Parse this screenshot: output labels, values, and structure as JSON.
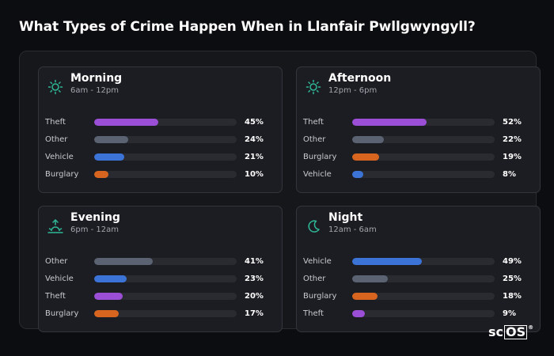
{
  "title": "What Types of Crime Happen When in Llanfair Pwllgwyngyll?",
  "logo": {
    "prefix": "sc",
    "boxed": "OS",
    "mark": "®"
  },
  "colors": {
    "Theft": "#9b4fd6",
    "Other": "#5b6272",
    "Vehicle": "#3b74d6",
    "Burglary": "#d7651f",
    "icon": "#2fb897"
  },
  "chart_data": [
    {
      "type": "bar",
      "title": "Morning",
      "subtitle": "6am - 12pm",
      "icon": "sun-icon",
      "categories": [
        "Theft",
        "Other",
        "Vehicle",
        "Burglary"
      ],
      "values": [
        45,
        24,
        21,
        10
      ],
      "labels": [
        "45%",
        "24%",
        "21%",
        "10%"
      ]
    },
    {
      "type": "bar",
      "title": "Afternoon",
      "subtitle": "12pm - 6pm",
      "icon": "sun-icon",
      "categories": [
        "Theft",
        "Other",
        "Burglary",
        "Vehicle"
      ],
      "values": [
        52,
        22,
        19,
        8
      ],
      "labels": [
        "52%",
        "22%",
        "19%",
        "8%"
      ]
    },
    {
      "type": "bar",
      "title": "Evening",
      "subtitle": "6pm - 12am",
      "icon": "sunset-icon",
      "categories": [
        "Other",
        "Vehicle",
        "Theft",
        "Burglary"
      ],
      "values": [
        41,
        23,
        20,
        17
      ],
      "labels": [
        "41%",
        "23%",
        "20%",
        "17%"
      ]
    },
    {
      "type": "bar",
      "title": "Night",
      "subtitle": "12am - 6am",
      "icon": "moon-icon",
      "categories": [
        "Vehicle",
        "Other",
        "Burglary",
        "Theft"
      ],
      "values": [
        49,
        25,
        18,
        9
      ],
      "labels": [
        "49%",
        "25%",
        "18%",
        "9%"
      ]
    }
  ]
}
